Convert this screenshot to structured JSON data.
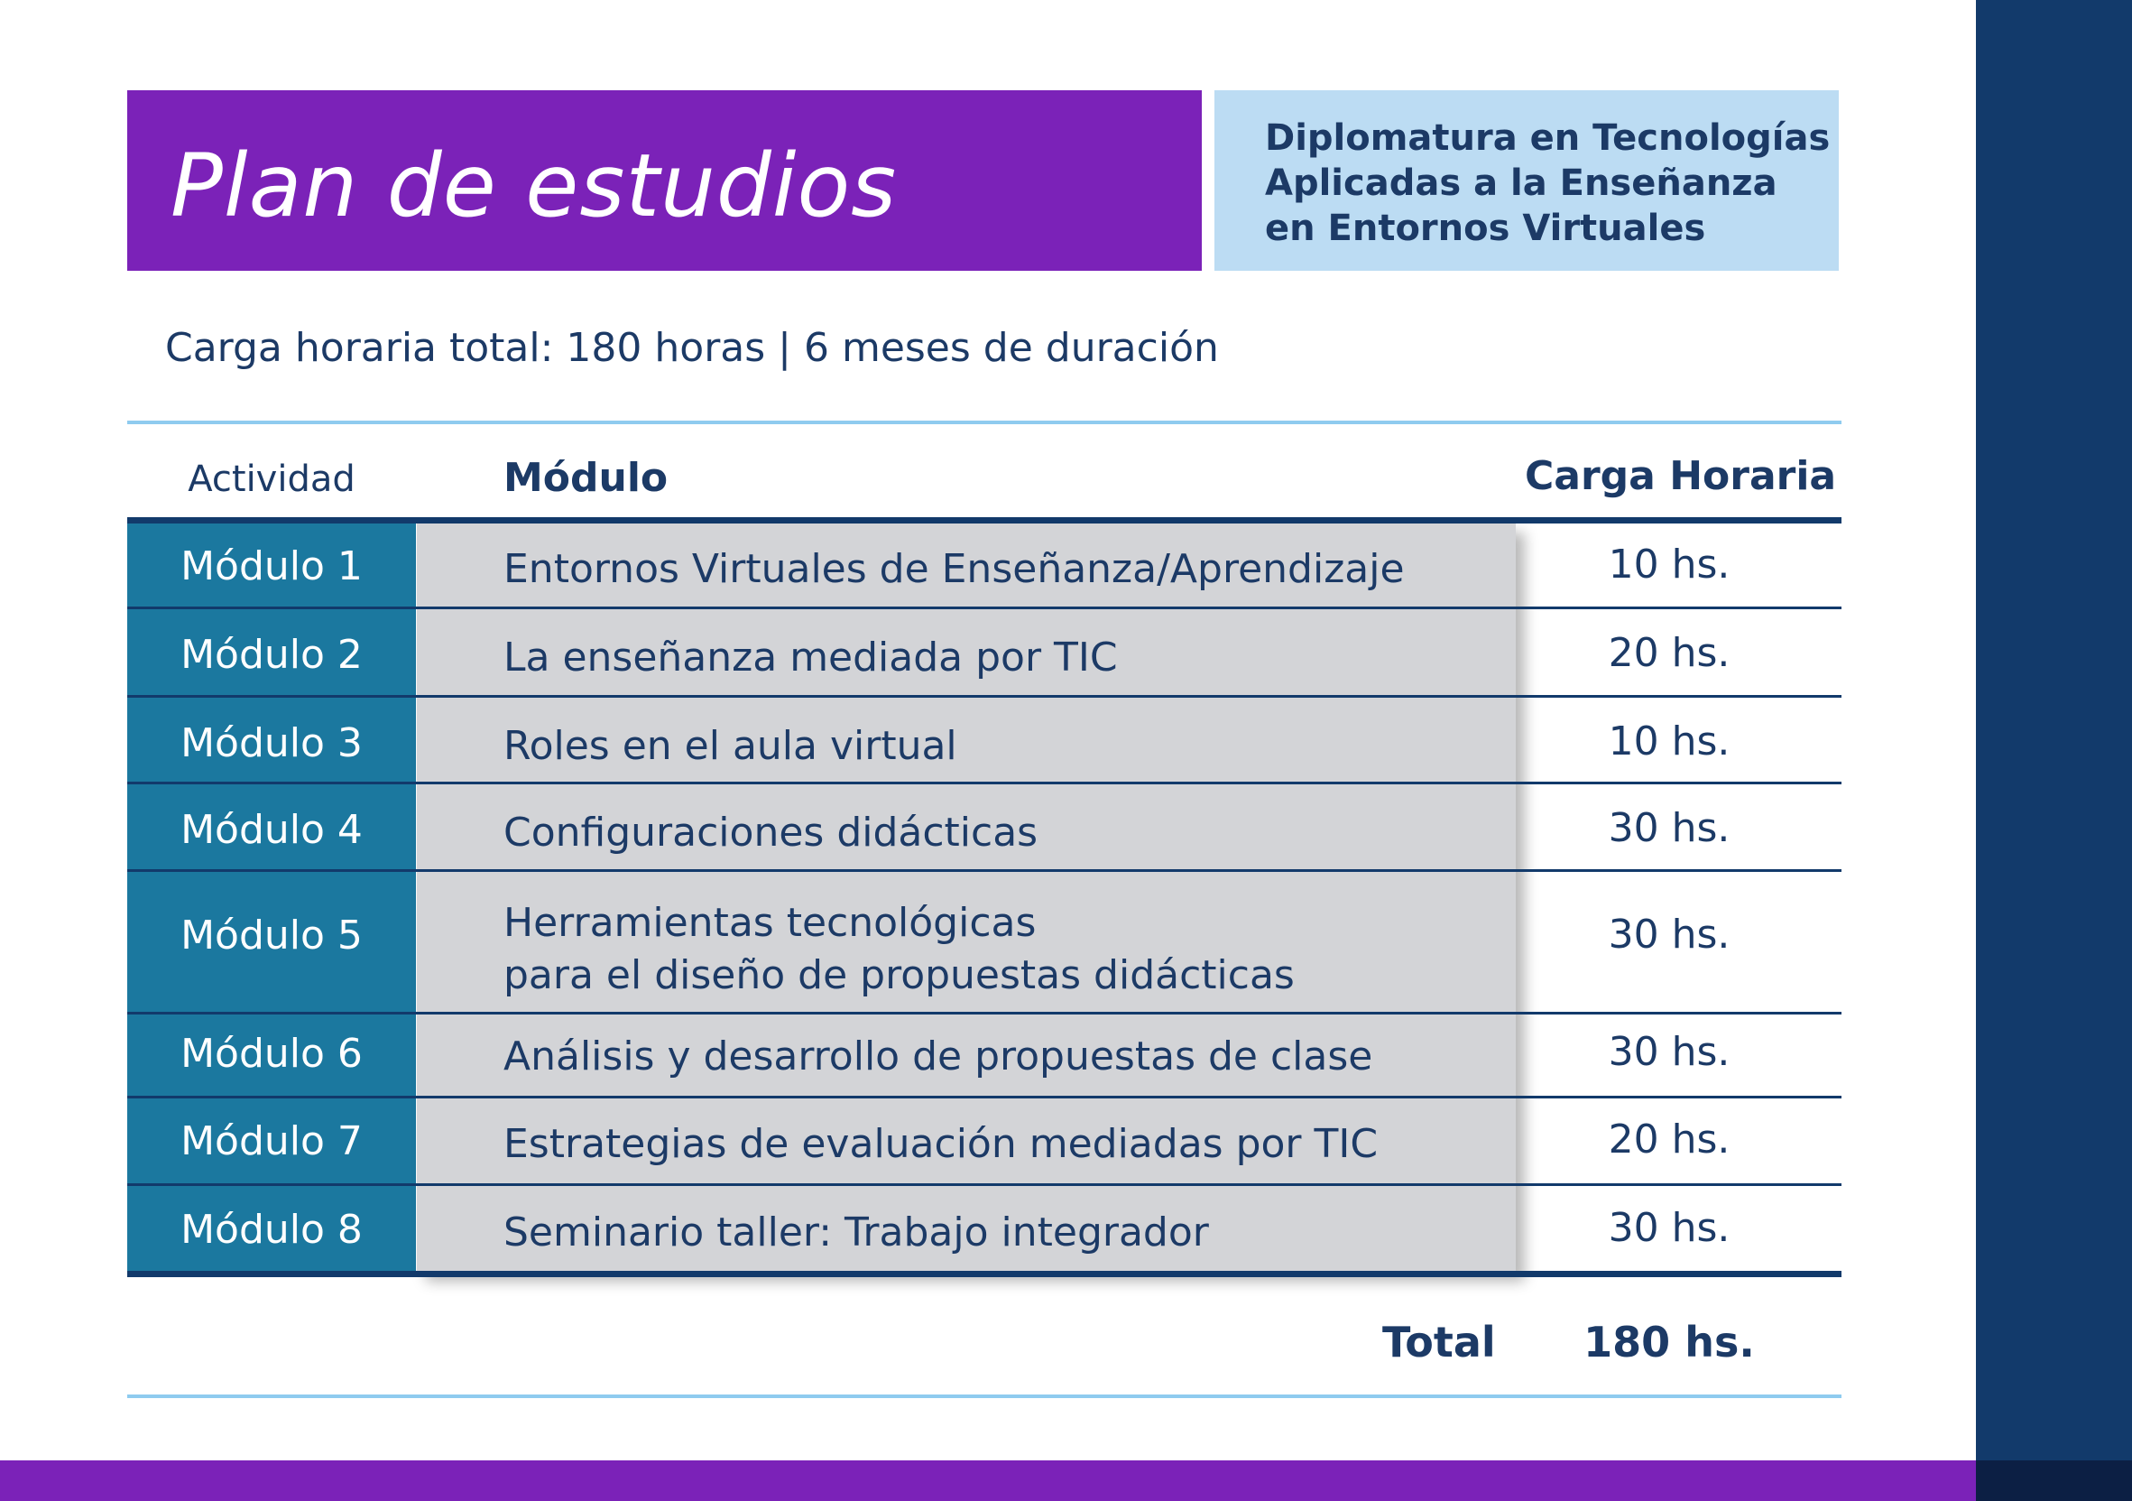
{
  "title": "Plan de estudios",
  "program": {
    "lines": [
      "Diplomatura en Tecnologías",
      "Aplicadas a la Enseñanza",
      "en Entornos Virtuales"
    ]
  },
  "subtitle": "Carga horaria total: 180 horas | 6 meses de duración",
  "table": {
    "headers": {
      "actividad": "Actividad",
      "modulo": "Módulo",
      "carga": "Carga Horaria"
    },
    "rows": [
      {
        "actividad": "Módulo 1",
        "modulo": [
          "Entornos Virtuales de Enseñanza/Aprendizaje"
        ],
        "horas": "10 hs."
      },
      {
        "actividad": "Módulo 2",
        "modulo": [
          "La enseñanza mediada por TIC"
        ],
        "horas": "20 hs."
      },
      {
        "actividad": "Módulo 3",
        "modulo": [
          "Roles en el aula virtual"
        ],
        "horas": "10 hs."
      },
      {
        "actividad": "Módulo 4",
        "modulo": [
          "Configuraciones didácticas"
        ],
        "horas": "30 hs."
      },
      {
        "actividad": "Módulo 5",
        "modulo": [
          "Herramientas tecnológicas",
          "para el diseño de propuestas didácticas"
        ],
        "horas": "30 hs."
      },
      {
        "actividad": "Módulo 6",
        "modulo": [
          "Análisis y desarrollo de propuestas de clase"
        ],
        "horas": "30 hs."
      },
      {
        "actividad": "Módulo 7",
        "modulo": [
          "Estrategias de evaluación mediadas por TIC"
        ],
        "horas": "20 hs."
      },
      {
        "actividad": "Módulo 8",
        "modulo": [
          "Seminario taller: Trabajo integrador"
        ],
        "horas": "30 hs."
      }
    ],
    "total_label": "Total",
    "total_value": "180 hs."
  },
  "colors": {
    "purple": "#7b22b8",
    "light_blue": "#bcdcf3",
    "navy": "#123a6b",
    "teal": "#1b789f",
    "gray": "#d3d4d7",
    "text": "#1c3a66"
  }
}
